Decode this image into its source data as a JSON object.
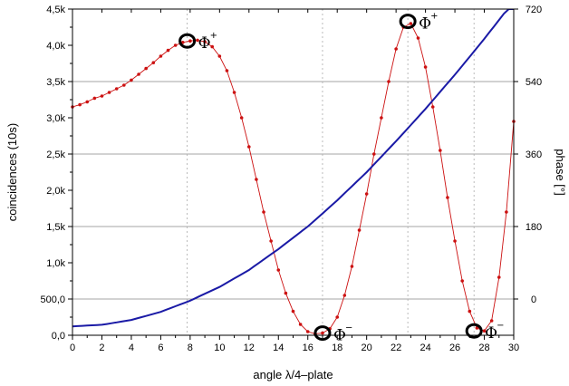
{
  "chart_data": {
    "type": "line",
    "xlabel": "angle λ/4–plate",
    "ylabel_left": "coincidences (10s)",
    "ylabel_right": "phase [°]",
    "xlim": [
      0,
      30
    ],
    "ylim_left": [
      0,
      4500
    ],
    "ylim_right": [
      -90,
      720
    ],
    "x_ticks": [
      0,
      2,
      4,
      6,
      8,
      10,
      12,
      14,
      16,
      18,
      20,
      22,
      24,
      26,
      28,
      30
    ],
    "x_tick_labels": [
      "0",
      "2",
      "4",
      "6",
      "8",
      "10",
      "12",
      "14",
      "16",
      "18",
      "20",
      "22",
      "24",
      "26",
      "28",
      "30"
    ],
    "y_left_ticks": [
      0,
      500,
      1000,
      1500,
      2000,
      2500,
      3000,
      3500,
      4000,
      4500
    ],
    "y_left_tick_labels": [
      "0,0",
      "500,0",
      "1,0k",
      "1,5k",
      "2,0k",
      "2,5k",
      "3,0k",
      "3,5k",
      "4,0k",
      "4,5k"
    ],
    "y_right_ticks": [
      0,
      180,
      360,
      540,
      720
    ],
    "y_right_tick_labels": [
      "0",
      "180",
      "360",
      "540",
      "720"
    ],
    "grid": {
      "vertical_dotted_at_x": [
        7.8,
        17,
        22.8,
        27.3
      ],
      "horizontal_at_phase": [
        0,
        180,
        360,
        540
      ]
    },
    "series": [
      {
        "role": "coincidences",
        "axis": "left",
        "color": "#cc1111",
        "marker": "dot",
        "x": [
          0,
          0.5,
          1,
          1.5,
          2,
          2.5,
          3,
          3.5,
          4,
          4.5,
          5,
          5.5,
          6,
          6.5,
          7,
          7.5,
          8,
          8.5,
          9,
          9.5,
          10,
          10.5,
          11,
          11.5,
          12,
          12.5,
          13,
          13.5,
          14,
          14.5,
          15,
          15.5,
          16,
          16.5,
          17,
          17.5,
          18,
          18.5,
          19,
          19.5,
          20,
          20.5,
          21,
          21.5,
          22,
          22.5,
          23,
          23.5,
          24,
          24.5,
          25,
          25.5,
          26,
          26.5,
          27,
          27.5,
          28,
          28.5,
          29,
          29.5,
          30
        ],
        "y": [
          3150,
          3180,
          3220,
          3270,
          3300,
          3350,
          3400,
          3450,
          3520,
          3600,
          3680,
          3760,
          3850,
          3930,
          4000,
          4040,
          4060,
          4070,
          4050,
          3980,
          3850,
          3650,
          3350,
          3000,
          2600,
          2150,
          1700,
          1300,
          900,
          580,
          330,
          150,
          50,
          20,
          30,
          90,
          250,
          550,
          950,
          1450,
          1950,
          2500,
          3000,
          3500,
          3950,
          4250,
          4300,
          4100,
          3700,
          3150,
          2550,
          1900,
          1300,
          750,
          330,
          100,
          60,
          200,
          800,
          1700,
          2950
        ]
      },
      {
        "role": "phase",
        "axis": "right",
        "color": "#1a1aa6",
        "marker": "none",
        "x": [
          0,
          2,
          4,
          6,
          8,
          10,
          12,
          14,
          16,
          18,
          20,
          22,
          24,
          26,
          28,
          30
        ],
        "y": [
          -68,
          -64,
          -52,
          -32,
          -4,
          30,
          72,
          124,
          180,
          245,
          315,
          392,
          472,
          557,
          646,
          740
        ]
      }
    ],
    "annotations": [
      {
        "label": "Φ",
        "sup": "+",
        "x": 7.8,
        "y": 4060
      },
      {
        "label": "Φ",
        "sup": "−",
        "x": 17.0,
        "y": 30
      },
      {
        "label": "Φ",
        "sup": "+",
        "x": 22.8,
        "y": 4330
      },
      {
        "label": "Φ",
        "sup": "−",
        "x": 27.3,
        "y": 60
      }
    ]
  }
}
